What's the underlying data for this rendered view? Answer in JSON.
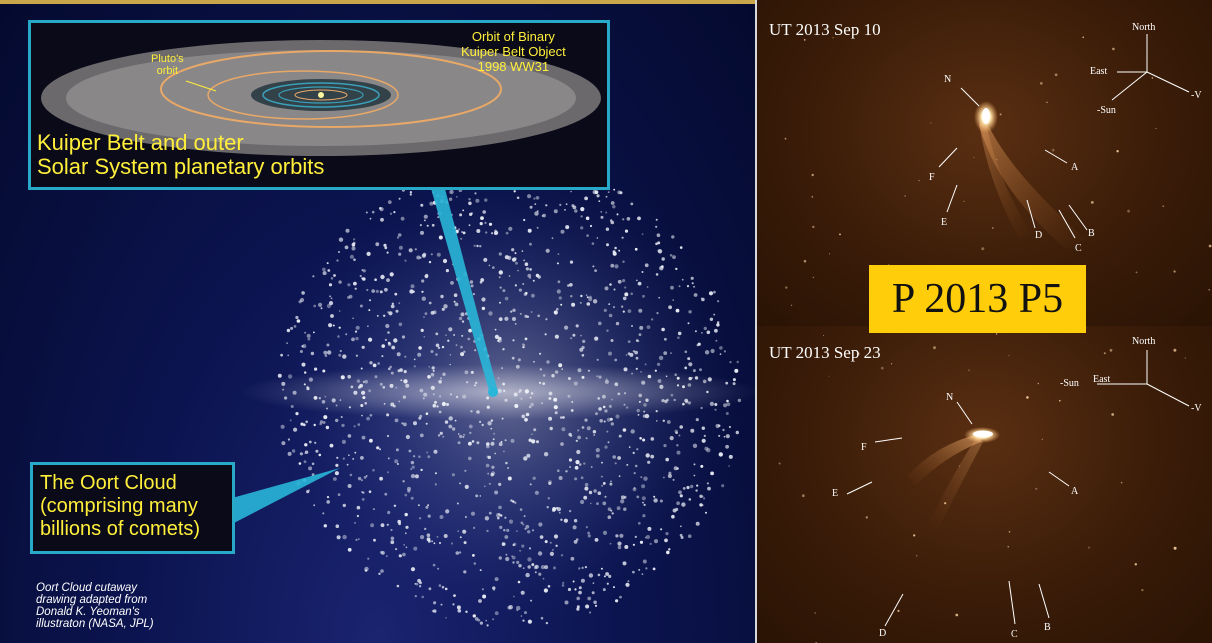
{
  "kuiper_inset": {
    "title_line1": "Kuiper Belt and outer",
    "title_line2": "Solar System planetary orbits",
    "orbit_binary_line1": "Orbit of Binary",
    "orbit_binary_line2": "Kuiper Belt Object",
    "orbit_binary_line3": "1998 WW31",
    "pluto_line1": "Pluto's",
    "pluto_line2": "orbit"
  },
  "oort_callout": {
    "line1": "The Oort Cloud",
    "line2": "(comprising many",
    "line3": "billions of comets)"
  },
  "credit": {
    "line1": "Oort Cloud cutaway",
    "line2": "drawing adapted from",
    "line3": "Donald K. Yeoman's",
    "line4": "illustraton (NASA, JPL)"
  },
  "designation": "P 2013 P5",
  "observation_top": {
    "date": "UT 2013 Sep 10",
    "compass": {
      "north": "North",
      "east": "East",
      "sun": "-Sun",
      "v": "-V"
    },
    "fragments": [
      "N",
      "F",
      "E",
      "A",
      "D",
      "B",
      "C"
    ]
  },
  "observation_bottom": {
    "date": "UT 2013 Sep 23",
    "compass": {
      "north": "North",
      "east": "East",
      "sun": "-Sun",
      "v": "-V"
    },
    "fragments": [
      "N",
      "F",
      "E",
      "A",
      "D",
      "C",
      "B"
    ]
  },
  "colors": {
    "label_yellow": "#ffef3a",
    "inset_border": "#28a9c8",
    "designation_bg": "#ffcd0a",
    "comet_bg": "#3a1c08"
  }
}
